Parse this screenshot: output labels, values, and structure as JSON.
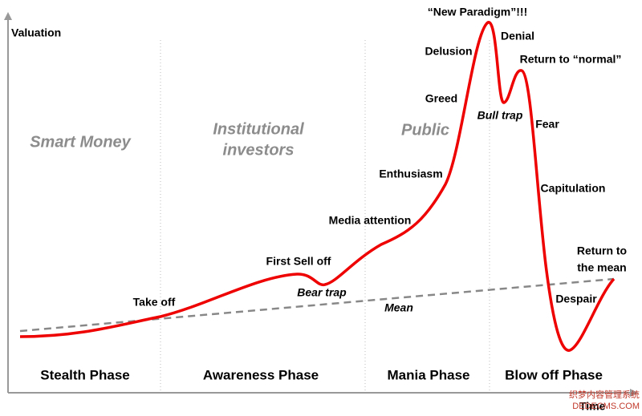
{
  "axes": {
    "y_label": "Valuation",
    "x_label": "Time"
  },
  "actors": [
    "Smart Money",
    "Institutional",
    "investors",
    "Public"
  ],
  "phases": [
    "Stealth Phase",
    "Awareness Phase",
    "Mania Phase",
    "Blow off Phase"
  ],
  "labels": [
    "Take off",
    "First Sell off",
    "Bear trap",
    "Media attention",
    "Enthusiasm",
    "Greed",
    "Delusion",
    "“New Paradigm”!!!",
    "Denial",
    "Bull trap",
    "Return to “normal”",
    "Fear",
    "Capitulation",
    "Despair",
    "Return to",
    "the mean",
    "Mean"
  ],
  "watermark": [
    "织梦内容管理系统",
    "DEDECMS.COM"
  ]
}
